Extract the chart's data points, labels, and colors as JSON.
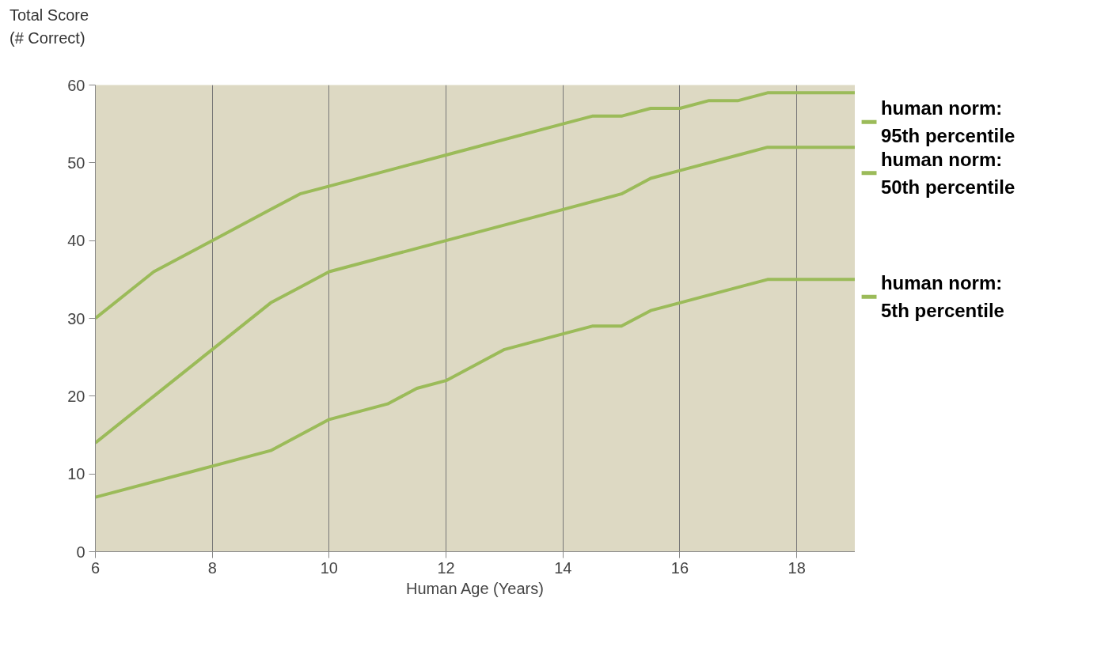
{
  "chart_data": {
    "type": "line",
    "ylabel": "Total Score\n(# Correct)",
    "xlabel": "Human Age (Years)",
    "xlim": [
      6,
      19
    ],
    "xticks": [
      6,
      8,
      10,
      12,
      14,
      16,
      18
    ],
    "ylim": [
      0,
      60
    ],
    "yticks": [
      0,
      10,
      20,
      30,
      40,
      50,
      60
    ],
    "grid": "x",
    "legend": "right",
    "line_style": "solid",
    "marker": "none",
    "series": [
      {
        "name": "human norm:\n95th percentile",
        "color": "#9bbb59",
        "x": [
          6,
          7,
          8,
          9,
          9.5,
          10,
          12,
          14,
          14.5,
          15,
          15.5,
          16,
          16.5,
          17,
          17.5,
          18,
          19
        ],
        "values": [
          30,
          36,
          40,
          44,
          46,
          47,
          51,
          55,
          56,
          56,
          57,
          57,
          58,
          58,
          59,
          59,
          59
        ]
      },
      {
        "name": "human norm:\n50th percentile",
        "color": "#9bbb59",
        "x": [
          6,
          7,
          8,
          9,
          9.5,
          10,
          12,
          14,
          15,
          15.5,
          16,
          17,
          17.5,
          18,
          19
        ],
        "values": [
          14,
          20,
          26,
          32,
          34,
          36,
          40,
          44,
          46,
          48,
          49,
          51,
          52,
          52,
          52
        ]
      },
      {
        "name": "human norm:\n5th percentile",
        "color": "#9bbb59",
        "x": [
          6,
          8,
          9,
          10,
          11,
          11.5,
          12,
          13,
          14,
          14.5,
          15,
          15.5,
          16,
          17,
          17.5,
          18,
          19
        ],
        "values": [
          7,
          11,
          13,
          17,
          19,
          21,
          22,
          26,
          28,
          29,
          29,
          31,
          32,
          34,
          35,
          35,
          35
        ]
      }
    ]
  }
}
